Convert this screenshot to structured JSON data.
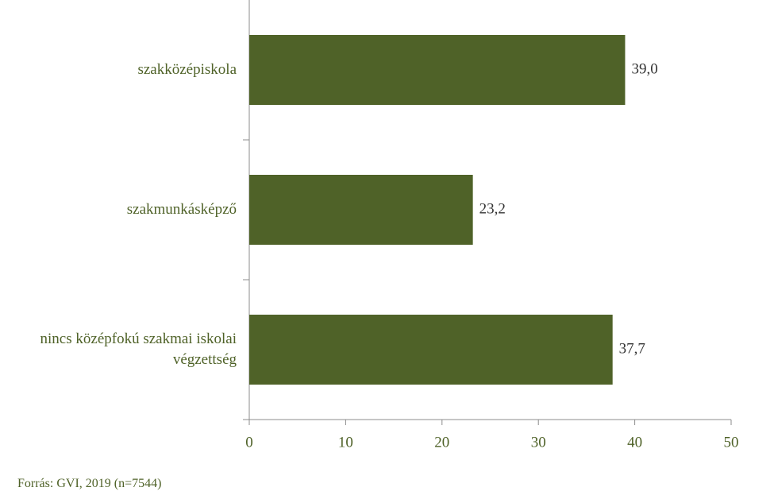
{
  "chart_data": {
    "type": "bar",
    "orientation": "horizontal",
    "categories": [
      "szakközépiskola",
      "szakmunkásképző",
      "nincs középfokú szakmai iskolai végzettség"
    ],
    "values": [
      39.0,
      23.2,
      37.7
    ],
    "value_labels": [
      "39,0",
      "23,2",
      "37,7"
    ],
    "color": "#4f6228",
    "xlim": [
      0,
      50
    ],
    "xticks": [
      0,
      10,
      20,
      30,
      40,
      50
    ],
    "source": "Forrás: GVI, 2019 (n=7544)"
  }
}
